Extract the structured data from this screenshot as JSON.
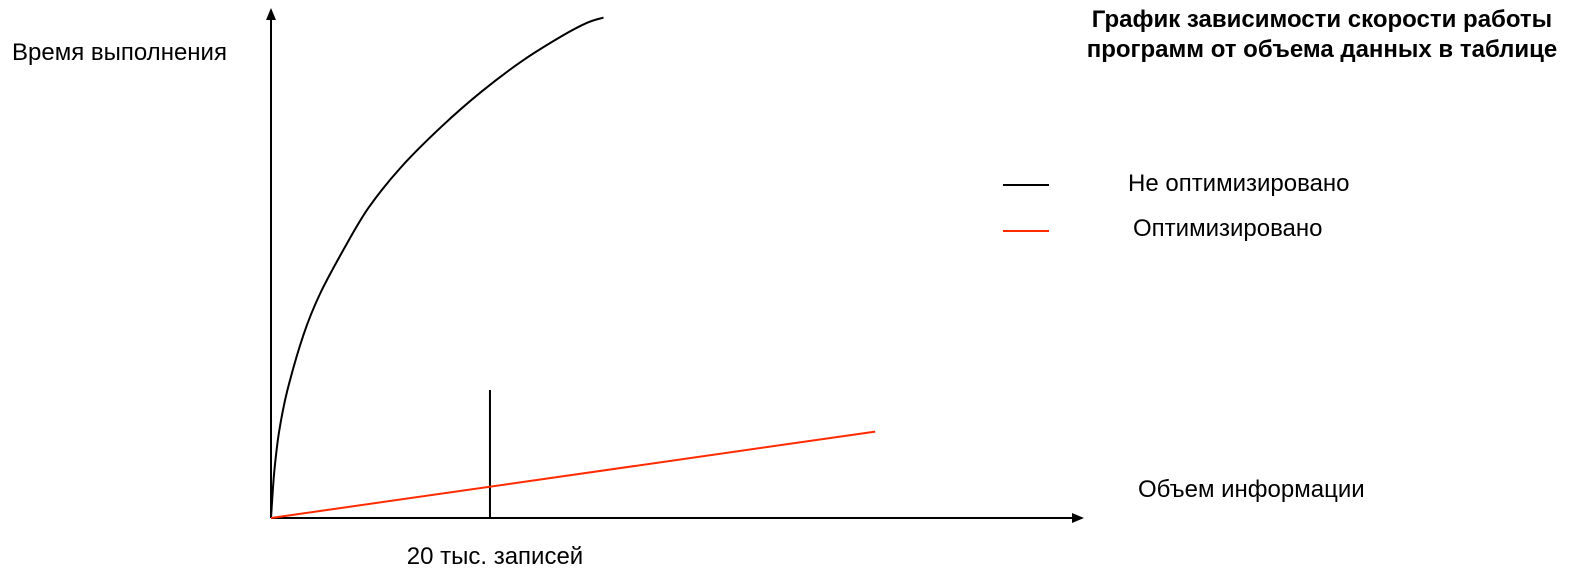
{
  "chart_data": {
    "type": "line",
    "title": "График зависимости скорости работы программ от объема данных в таблице",
    "xlabel": "Объем информации",
    "ylabel": "Время выполнения",
    "marker": {
      "x": 0.27,
      "label": "20 тыс. записей"
    },
    "xlim": [
      0,
      1
    ],
    "ylim": [
      0,
      1
    ],
    "legend_position": "top-right",
    "series": [
      {
        "name": "Не оптимизировано",
        "color": "#000000",
        "points": [
          [
            0,
            0
          ],
          [
            0.004,
            0.09
          ],
          [
            0.01,
            0.17
          ],
          [
            0.02,
            0.25
          ],
          [
            0.04,
            0.36
          ],
          [
            0.06,
            0.44
          ],
          [
            0.09,
            0.53
          ],
          [
            0.12,
            0.61
          ],
          [
            0.16,
            0.69
          ],
          [
            0.21,
            0.77
          ],
          [
            0.26,
            0.84
          ],
          [
            0.31,
            0.9
          ],
          [
            0.36,
            0.95
          ],
          [
            0.39,
            0.975
          ],
          [
            0.41,
            0.985
          ]
        ]
      },
      {
        "name": "Оптимизировано",
        "color": "#ff2a00",
        "points": [
          [
            0,
            0
          ],
          [
            0.745,
            0.17
          ]
        ]
      }
    ]
  }
}
